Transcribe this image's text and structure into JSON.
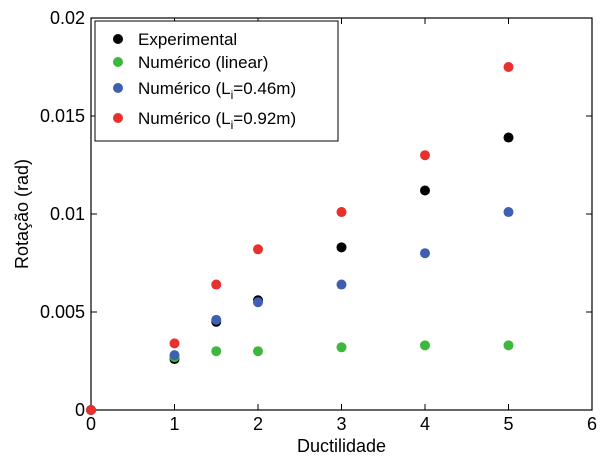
{
  "chart_data": {
    "type": "scatter",
    "xlabel": "Ductilidade",
    "ylabel": "Rotação (rad)",
    "xlim": [
      0,
      6
    ],
    "ylim": [
      0,
      0.02
    ],
    "xticks": [
      "0",
      "1",
      "2",
      "3",
      "4",
      "5",
      "6"
    ],
    "yticks": [
      "0",
      "0.005",
      "0.01",
      "0.015",
      "0.02"
    ],
    "grid": false,
    "legend_position": "top-left",
    "series": [
      {
        "name": "Experimental",
        "color": "#000000",
        "x": [
          0,
          1,
          1.5,
          2,
          3,
          4,
          5
        ],
        "y": [
          0,
          0.0026,
          0.0045,
          0.0056,
          0.0083,
          0.0112,
          0.0139
        ]
      },
      {
        "name": "Numérico (linear)",
        "color": "#3cb83c",
        "x": [
          0,
          1,
          1.5,
          2,
          3,
          4,
          5
        ],
        "y": [
          0,
          0.0027,
          0.003,
          0.003,
          0.0032,
          0.0033,
          0.0033
        ]
      },
      {
        "name": "Numérico (Li=0.46m)",
        "name_parts": {
          "pre": "Numérico (L",
          "sub": "i",
          "post": "=0.46m)"
        },
        "color": "#3f5fb0",
        "x": [
          0,
          1,
          1.5,
          2,
          3,
          4,
          5
        ],
        "y": [
          0,
          0.0028,
          0.0046,
          0.0055,
          0.0064,
          0.008,
          0.0101
        ]
      },
      {
        "name": "Numérico (Li=0.92m)",
        "name_parts": {
          "pre": "Numérico (L",
          "sub": "i",
          "post": "=0.92m)"
        },
        "color": "#e8302c",
        "x": [
          0,
          1,
          1.5,
          2,
          3,
          4,
          5
        ],
        "y": [
          0,
          0.0034,
          0.0064,
          0.0082,
          0.0101,
          0.013,
          0.0175
        ]
      }
    ]
  }
}
